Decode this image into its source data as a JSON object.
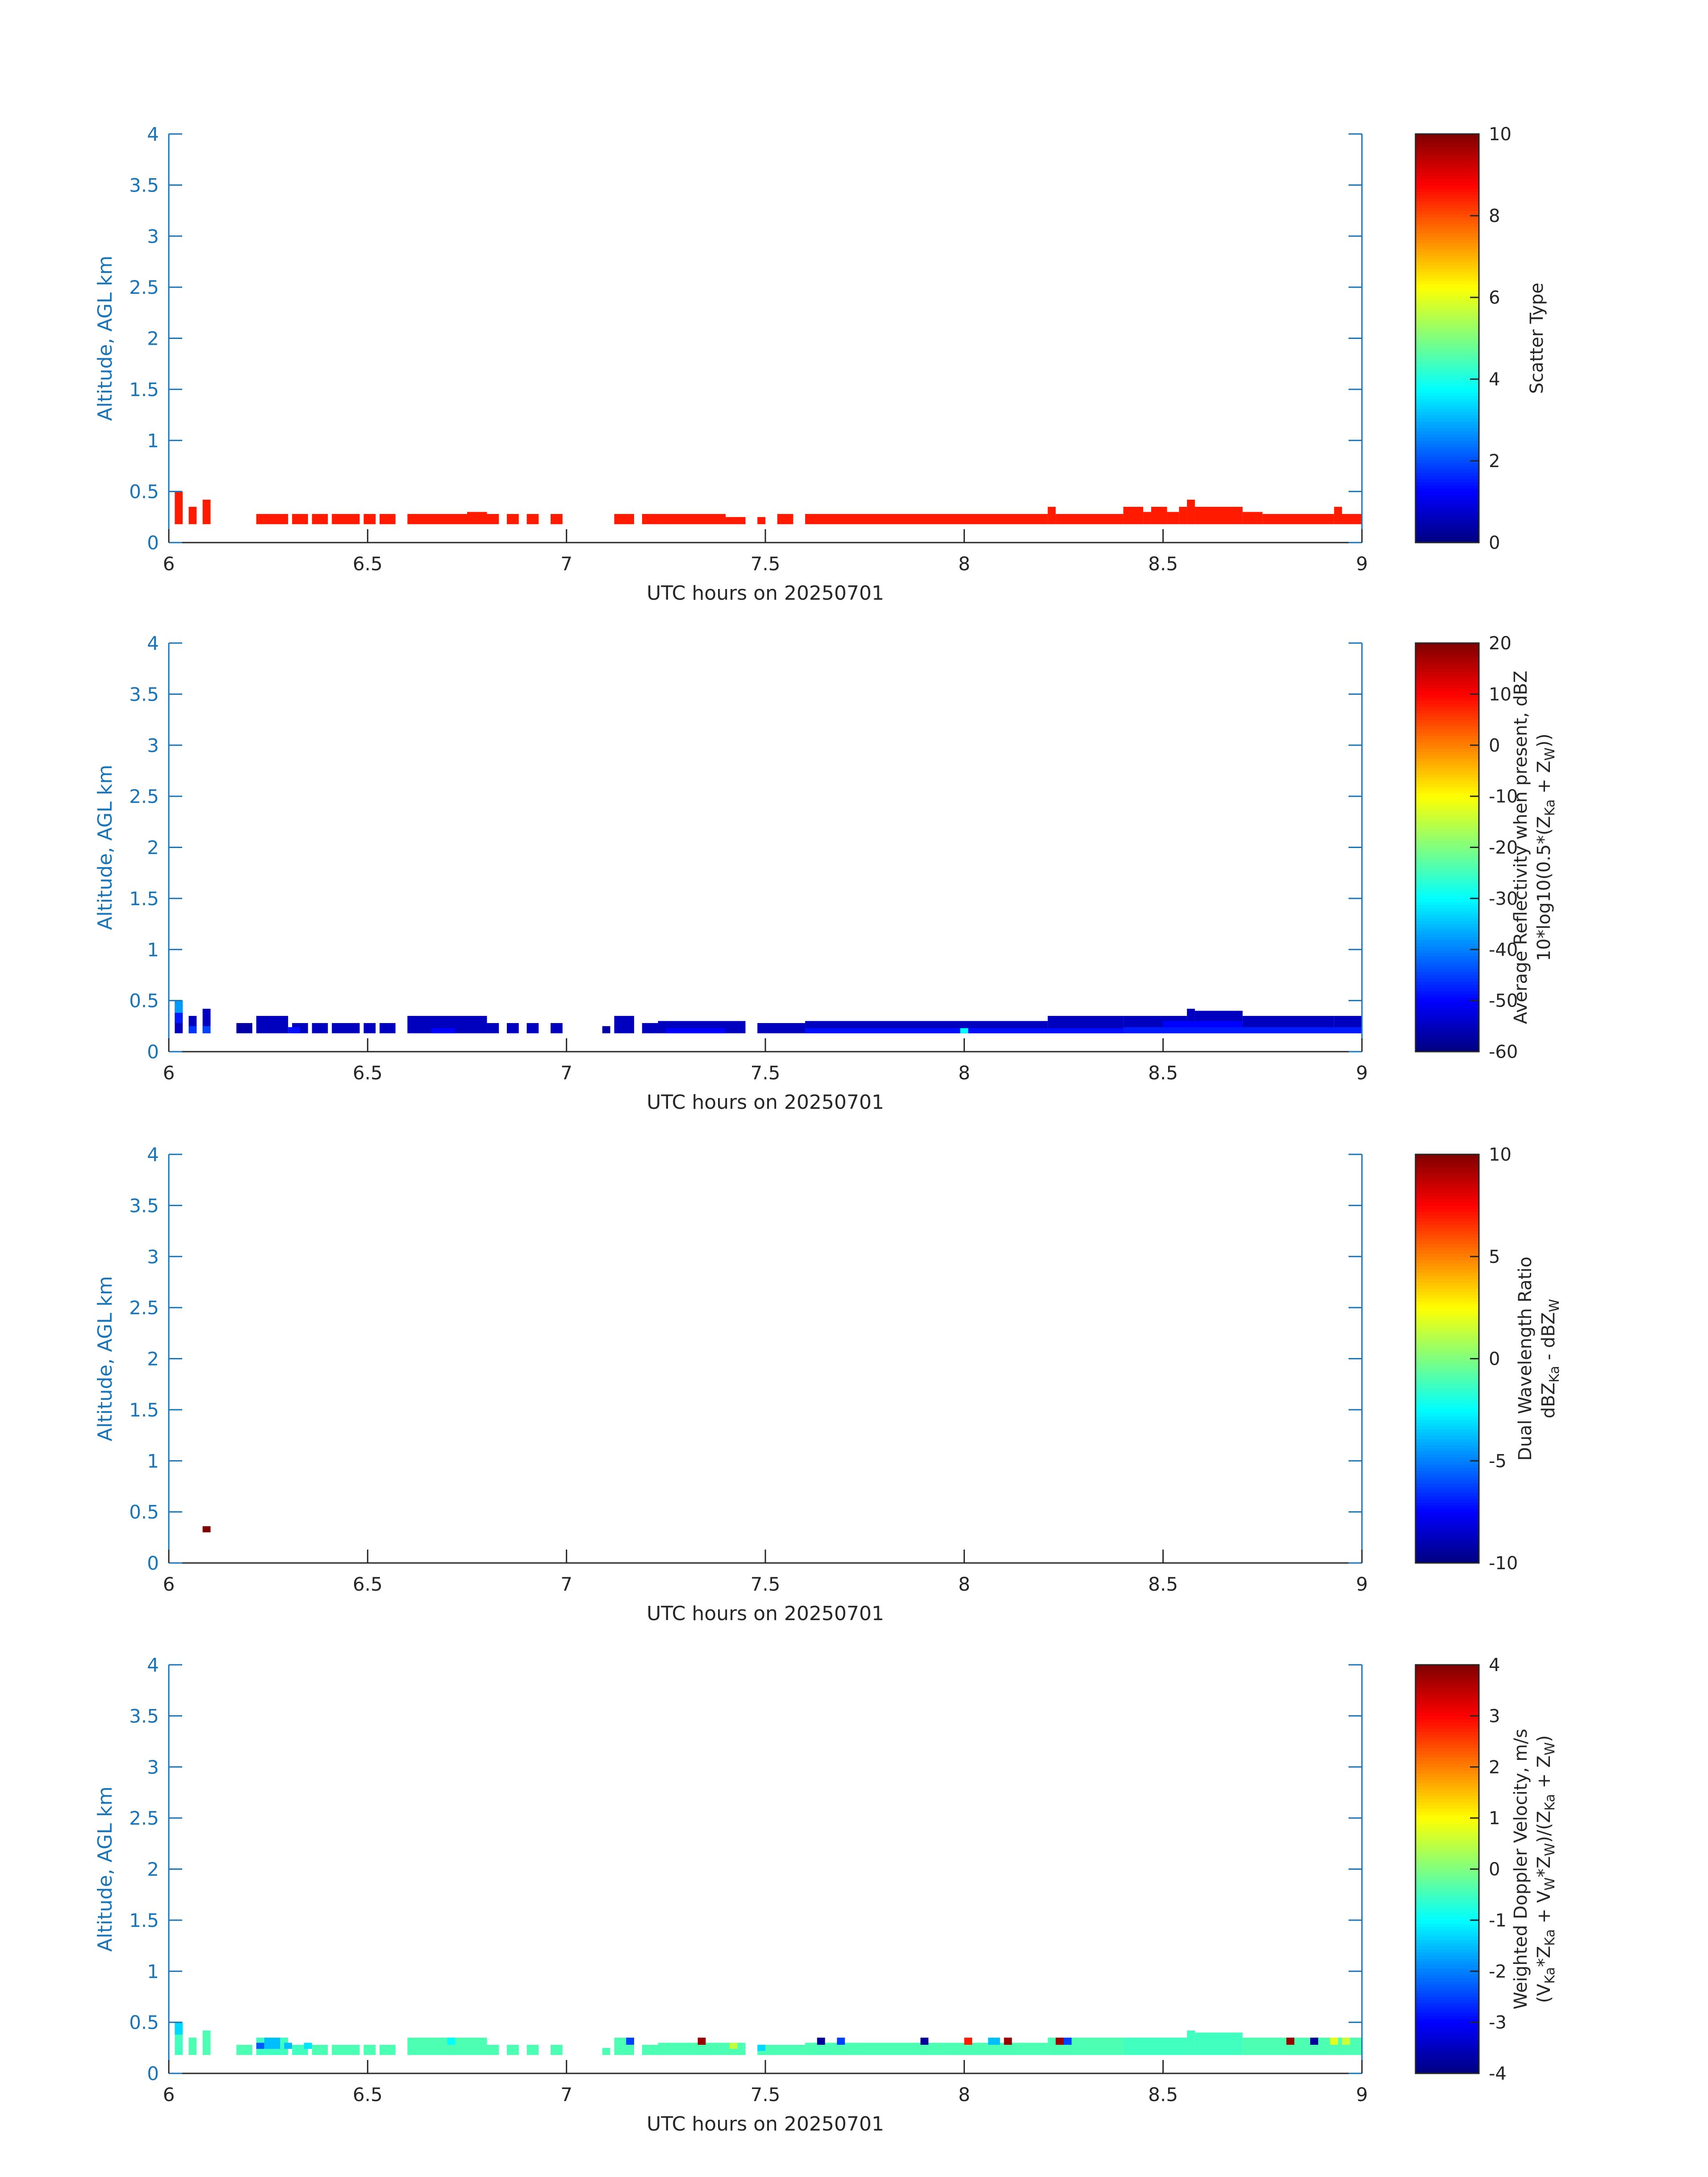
{
  "figure": {
    "xlabel": "UTC hours on 20250701",
    "ylabel": "Altitude, AGL km",
    "xlim": [
      6,
      9
    ],
    "ylim": [
      0,
      4
    ],
    "xticks": [
      "6",
      "6.5",
      "7",
      "7.5",
      "8",
      "8.5",
      "9"
    ],
    "yticks": [
      "0",
      "0.5",
      "1",
      "1.5",
      "2",
      "2.5",
      "3",
      "3.5",
      "4"
    ],
    "axis_color": "#1a75b8",
    "colormap": "jet"
  },
  "chart_data": [
    {
      "type": "heatmap",
      "variable": "scatter_type",
      "colorbar_label": [
        "Scatter Type"
      ],
      "clim": [
        0,
        10
      ],
      "cticks": [
        "0",
        "2",
        "4",
        "6",
        "8",
        "10"
      ],
      "dominant_value": 8.5,
      "segments": [
        {
          "x0": 6.015,
          "x1": 6.035,
          "top": 0.5,
          "v": 8.5
        },
        {
          "x0": 6.05,
          "x1": 6.07,
          "top": 0.35,
          "v": 8.5
        },
        {
          "x0": 6.085,
          "x1": 6.105,
          "top": 0.42,
          "v": 8.5
        },
        {
          "x0": 6.22,
          "x1": 6.3,
          "top": 0.28,
          "v": 8.5
        },
        {
          "x0": 6.31,
          "x1": 6.35,
          "top": 0.28,
          "v": 8.5
        },
        {
          "x0": 6.36,
          "x1": 6.4,
          "top": 0.28,
          "v": 8.5
        },
        {
          "x0": 6.41,
          "x1": 6.48,
          "top": 0.28,
          "v": 8.5
        },
        {
          "x0": 6.49,
          "x1": 6.52,
          "top": 0.28,
          "v": 8.5
        },
        {
          "x0": 6.53,
          "x1": 6.57,
          "top": 0.28,
          "v": 8.5
        },
        {
          "x0": 6.6,
          "x1": 6.75,
          "top": 0.28,
          "v": 8.5
        },
        {
          "x0": 6.75,
          "x1": 6.8,
          "top": 0.3,
          "v": 8.5
        },
        {
          "x0": 6.8,
          "x1": 6.83,
          "top": 0.28,
          "v": 8.5
        },
        {
          "x0": 6.85,
          "x1": 6.88,
          "top": 0.28,
          "v": 8.5
        },
        {
          "x0": 6.9,
          "x1": 6.93,
          "top": 0.28,
          "v": 8.5
        },
        {
          "x0": 6.96,
          "x1": 6.99,
          "top": 0.28,
          "v": 8.5
        },
        {
          "x0": 7.12,
          "x1": 7.17,
          "top": 0.28,
          "v": 8.5
        },
        {
          "x0": 7.19,
          "x1": 7.23,
          "top": 0.28,
          "v": 8.5
        },
        {
          "x0": 7.23,
          "x1": 7.4,
          "top": 0.28,
          "v": 8.5
        },
        {
          "x0": 7.4,
          "x1": 7.45,
          "top": 0.25,
          "v": 8.5
        },
        {
          "x0": 7.48,
          "x1": 7.5,
          "top": 0.25,
          "v": 8.5
        },
        {
          "x0": 7.53,
          "x1": 7.57,
          "top": 0.28,
          "v": 8.5
        },
        {
          "x0": 7.6,
          "x1": 8.21,
          "top": 0.28,
          "v": 8.5
        },
        {
          "x0": 8.21,
          "x1": 8.23,
          "top": 0.35,
          "v": 8.5
        },
        {
          "x0": 8.23,
          "x1": 8.4,
          "top": 0.28,
          "v": 8.5
        },
        {
          "x0": 8.4,
          "x1": 8.45,
          "top": 0.35,
          "v": 8.5
        },
        {
          "x0": 8.45,
          "x1": 8.47,
          "top": 0.3,
          "v": 8.5
        },
        {
          "x0": 8.47,
          "x1": 8.51,
          "top": 0.35,
          "v": 8.5
        },
        {
          "x0": 8.51,
          "x1": 8.54,
          "top": 0.3,
          "v": 8.5
        },
        {
          "x0": 8.54,
          "x1": 8.56,
          "top": 0.35,
          "v": 8.5
        },
        {
          "x0": 8.56,
          "x1": 8.58,
          "top": 0.42,
          "v": 8.5
        },
        {
          "x0": 8.58,
          "x1": 8.7,
          "top": 0.35,
          "v": 8.5
        },
        {
          "x0": 8.7,
          "x1": 8.75,
          "top": 0.3,
          "v": 8.5
        },
        {
          "x0": 8.75,
          "x1": 8.93,
          "top": 0.28,
          "v": 8.5
        },
        {
          "x0": 8.93,
          "x1": 8.95,
          "top": 0.35,
          "v": 8.5
        },
        {
          "x0": 8.95,
          "x1": 9.0,
          "top": 0.28,
          "v": 8.5
        }
      ]
    },
    {
      "type": "heatmap",
      "variable": "average_reflectivity",
      "colorbar_label": [
        "Average Reflectivity when present, dBZ",
        "10*log10(0.5*(Z",
        "Ka",
        " + Z",
        "W",
        "))"
      ],
      "clim": [
        -60,
        20
      ],
      "cticks": [
        "-60",
        "-50",
        "-40",
        "-30",
        "-20",
        "-10",
        "0",
        "10",
        "20"
      ],
      "dominant_value": -55,
      "segments": [
        {
          "x0": 6.015,
          "x1": 6.035,
          "top": 0.5,
          "v": -55
        },
        {
          "x0": 6.05,
          "x1": 6.07,
          "top": 0.35,
          "v": -55
        },
        {
          "x0": 6.085,
          "x1": 6.105,
          "top": 0.42,
          "v": -55
        },
        {
          "x0": 6.17,
          "x1": 6.21,
          "top": 0.28,
          "v": -57
        },
        {
          "x0": 6.22,
          "x1": 6.3,
          "top": 0.35,
          "v": -55
        },
        {
          "x0": 6.31,
          "x1": 6.35,
          "top": 0.28,
          "v": -55
        },
        {
          "x0": 6.36,
          "x1": 6.4,
          "top": 0.28,
          "v": -55
        },
        {
          "x0": 6.41,
          "x1": 6.48,
          "top": 0.28,
          "v": -55
        },
        {
          "x0": 6.49,
          "x1": 6.52,
          "top": 0.28,
          "v": -55
        },
        {
          "x0": 6.53,
          "x1": 6.57,
          "top": 0.28,
          "v": -55
        },
        {
          "x0": 6.6,
          "x1": 6.75,
          "top": 0.35,
          "v": -55
        },
        {
          "x0": 6.75,
          "x1": 6.8,
          "top": 0.35,
          "v": -55
        },
        {
          "x0": 6.8,
          "x1": 6.83,
          "top": 0.28,
          "v": -55
        },
        {
          "x0": 6.85,
          "x1": 6.88,
          "top": 0.28,
          "v": -55
        },
        {
          "x0": 6.9,
          "x1": 6.93,
          "top": 0.28,
          "v": -55
        },
        {
          "x0": 6.96,
          "x1": 6.99,
          "top": 0.28,
          "v": -55
        },
        {
          "x0": 7.09,
          "x1": 7.11,
          "top": 0.25,
          "v": -57
        },
        {
          "x0": 7.12,
          "x1": 7.17,
          "top": 0.35,
          "v": -55
        },
        {
          "x0": 7.19,
          "x1": 7.23,
          "top": 0.28,
          "v": -55
        },
        {
          "x0": 7.23,
          "x1": 7.45,
          "top": 0.3,
          "v": -55
        },
        {
          "x0": 7.48,
          "x1": 7.6,
          "top": 0.28,
          "v": -55
        },
        {
          "x0": 7.6,
          "x1": 8.21,
          "top": 0.3,
          "v": -55
        },
        {
          "x0": 8.21,
          "x1": 8.4,
          "top": 0.35,
          "v": -55
        },
        {
          "x0": 8.4,
          "x1": 8.56,
          "top": 0.35,
          "v": -55
        },
        {
          "x0": 8.56,
          "x1": 8.58,
          "top": 0.42,
          "v": -55
        },
        {
          "x0": 8.58,
          "x1": 8.7,
          "top": 0.4,
          "v": -55
        },
        {
          "x0": 8.7,
          "x1": 8.93,
          "top": 0.35,
          "v": -55
        },
        {
          "x0": 8.93,
          "x1": 9.0,
          "top": 0.35,
          "v": -55
        }
      ],
      "cells": [
        {
          "x0": 6.015,
          "x1": 6.035,
          "y0": 0.38,
          "y1": 0.5,
          "v": -38
        },
        {
          "x0": 6.015,
          "x1": 6.035,
          "y0": 0.28,
          "y1": 0.38,
          "v": -48
        },
        {
          "x0": 6.05,
          "x1": 6.07,
          "y0": 0.18,
          "y1": 0.25,
          "v": -46
        },
        {
          "x0": 6.085,
          "x1": 6.105,
          "y0": 0.18,
          "y1": 0.25,
          "v": -45
        },
        {
          "x0": 6.3,
          "x1": 6.33,
          "y0": 0.18,
          "y1": 0.24,
          "v": -49
        },
        {
          "x0": 6.66,
          "x1": 6.72,
          "y0": 0.18,
          "y1": 0.23,
          "v": -50
        },
        {
          "x0": 7.25,
          "x1": 7.4,
          "y0": 0.18,
          "y1": 0.23,
          "v": -50
        },
        {
          "x0": 7.6,
          "x1": 8.4,
          "y0": 0.18,
          "y1": 0.23,
          "v": -49
        },
        {
          "x0": 7.99,
          "x1": 8.01,
          "y0": 0.18,
          "y1": 0.23,
          "v": -30
        },
        {
          "x0": 8.4,
          "x1": 9.0,
          "y0": 0.18,
          "y1": 0.24,
          "v": -48
        },
        {
          "x0": 8.5,
          "x1": 8.7,
          "y0": 0.24,
          "y1": 0.3,
          "v": -50
        }
      ]
    },
    {
      "type": "heatmap",
      "variable": "dual_wavelength_ratio",
      "colorbar_label": [
        "Dual Wavelength Ratio",
        "dBZ",
        "Ka",
        " - dBZ",
        "W"
      ],
      "clim": [
        -10,
        10
      ],
      "cticks": [
        "-10",
        "-5",
        "0",
        "5",
        "10"
      ],
      "segments": [],
      "cells": [
        {
          "x0": 6.085,
          "x1": 6.105,
          "y0": 0.3,
          "y1": 0.36,
          "v": 10
        }
      ]
    },
    {
      "type": "heatmap",
      "variable": "weighted_doppler_velocity",
      "colorbar_label": [
        "Weighted Doppler Velocity, m/s",
        "(V",
        "Ka",
        "*Z",
        "Ka",
        " + V",
        "W",
        "*Z",
        "W",
        ")/(Z",
        "Ka",
        " + Z",
        "W",
        ")"
      ],
      "clim": [
        -4,
        4
      ],
      "cticks": [
        "-4",
        "-3",
        "-2",
        "-1",
        "0",
        "1",
        "2",
        "3",
        "4"
      ],
      "dominant_value": -0.4,
      "segments": [
        {
          "x0": 6.015,
          "x1": 6.035,
          "top": 0.5,
          "v": -0.5
        },
        {
          "x0": 6.05,
          "x1": 6.07,
          "top": 0.35,
          "v": -0.4
        },
        {
          "x0": 6.085,
          "x1": 6.105,
          "top": 0.42,
          "v": -0.4
        },
        {
          "x0": 6.17,
          "x1": 6.21,
          "top": 0.28,
          "v": -0.4
        },
        {
          "x0": 6.22,
          "x1": 6.3,
          "top": 0.35,
          "v": -0.5
        },
        {
          "x0": 6.31,
          "x1": 6.35,
          "top": 0.28,
          "v": -0.5
        },
        {
          "x0": 6.36,
          "x1": 6.4,
          "top": 0.28,
          "v": -0.4
        },
        {
          "x0": 6.41,
          "x1": 6.48,
          "top": 0.28,
          "v": -0.4
        },
        {
          "x0": 6.49,
          "x1": 6.52,
          "top": 0.28,
          "v": -0.4
        },
        {
          "x0": 6.53,
          "x1": 6.57,
          "top": 0.28,
          "v": -0.4
        },
        {
          "x0": 6.6,
          "x1": 6.75,
          "top": 0.35,
          "v": -0.4
        },
        {
          "x0": 6.75,
          "x1": 6.8,
          "top": 0.35,
          "v": -0.4
        },
        {
          "x0": 6.8,
          "x1": 6.83,
          "top": 0.28,
          "v": -0.4
        },
        {
          "x0": 6.85,
          "x1": 6.88,
          "top": 0.28,
          "v": -0.4
        },
        {
          "x0": 6.9,
          "x1": 6.93,
          "top": 0.28,
          "v": -0.4
        },
        {
          "x0": 6.96,
          "x1": 6.99,
          "top": 0.28,
          "v": -0.4
        },
        {
          "x0": 7.09,
          "x1": 7.11,
          "top": 0.25,
          "v": -0.4
        },
        {
          "x0": 7.12,
          "x1": 7.17,
          "top": 0.35,
          "v": -0.4
        },
        {
          "x0": 7.19,
          "x1": 7.23,
          "top": 0.28,
          "v": -0.4
        },
        {
          "x0": 7.23,
          "x1": 7.45,
          "top": 0.3,
          "v": -0.4
        },
        {
          "x0": 7.48,
          "x1": 7.6,
          "top": 0.28,
          "v": -0.4
        },
        {
          "x0": 7.6,
          "x1": 8.21,
          "top": 0.3,
          "v": -0.4
        },
        {
          "x0": 8.21,
          "x1": 8.4,
          "top": 0.35,
          "v": -0.4
        },
        {
          "x0": 8.4,
          "x1": 8.56,
          "top": 0.35,
          "v": -0.5
        },
        {
          "x0": 8.56,
          "x1": 8.58,
          "top": 0.42,
          "v": -0.5
        },
        {
          "x0": 8.58,
          "x1": 8.7,
          "top": 0.4,
          "v": -0.5
        },
        {
          "x0": 8.7,
          "x1": 8.93,
          "top": 0.35,
          "v": -0.4
        },
        {
          "x0": 8.93,
          "x1": 9.0,
          "top": 0.35,
          "v": -0.4
        }
      ],
      "cells": [
        {
          "x0": 6.015,
          "x1": 6.035,
          "y0": 0.38,
          "y1": 0.5,
          "v": -1.3
        },
        {
          "x0": 6.22,
          "x1": 6.24,
          "y0": 0.24,
          "y1": 0.3,
          "v": -2.3
        },
        {
          "x0": 6.24,
          "x1": 6.28,
          "y0": 0.24,
          "y1": 0.35,
          "v": -1.5
        },
        {
          "x0": 6.29,
          "x1": 6.31,
          "y0": 0.24,
          "y1": 0.3,
          "v": -1.5
        },
        {
          "x0": 6.34,
          "x1": 6.36,
          "y0": 0.24,
          "y1": 0.3,
          "v": -1.2
        },
        {
          "x0": 6.7,
          "x1": 6.72,
          "y0": 0.28,
          "y1": 0.35,
          "v": -1.0
        },
        {
          "x0": 7.15,
          "x1": 7.17,
          "y0": 0.28,
          "y1": 0.35,
          "v": -2.5
        },
        {
          "x0": 7.33,
          "x1": 7.35,
          "y0": 0.28,
          "y1": 0.35,
          "v": 3.8
        },
        {
          "x0": 7.41,
          "x1": 7.43,
          "y0": 0.24,
          "y1": 0.3,
          "v": 0.5
        },
        {
          "x0": 7.48,
          "x1": 7.5,
          "y0": 0.22,
          "y1": 0.28,
          "v": -1.3
        },
        {
          "x0": 7.63,
          "x1": 7.65,
          "y0": 0.28,
          "y1": 0.35,
          "v": -3.8
        },
        {
          "x0": 7.68,
          "x1": 7.7,
          "y0": 0.28,
          "y1": 0.35,
          "v": -2.5
        },
        {
          "x0": 7.89,
          "x1": 7.91,
          "y0": 0.28,
          "y1": 0.35,
          "v": -3.8
        },
        {
          "x0": 8.0,
          "x1": 8.02,
          "y0": 0.28,
          "y1": 0.35,
          "v": 2.8
        },
        {
          "x0": 8.06,
          "x1": 8.09,
          "y0": 0.28,
          "y1": 0.35,
          "v": -1.5
        },
        {
          "x0": 8.1,
          "x1": 8.12,
          "y0": 0.28,
          "y1": 0.35,
          "v": 3.8
        },
        {
          "x0": 8.23,
          "x1": 8.25,
          "y0": 0.28,
          "y1": 0.35,
          "v": 3.8
        },
        {
          "x0": 8.25,
          "x1": 8.27,
          "y0": 0.28,
          "y1": 0.35,
          "v": -2.5
        },
        {
          "x0": 8.81,
          "x1": 8.83,
          "y0": 0.28,
          "y1": 0.35,
          "v": 3.8
        },
        {
          "x0": 8.87,
          "x1": 8.89,
          "y0": 0.28,
          "y1": 0.35,
          "v": -3.8
        },
        {
          "x0": 8.92,
          "x1": 8.94,
          "y0": 0.28,
          "y1": 0.35,
          "v": 0.8
        },
        {
          "x0": 8.95,
          "x1": 8.97,
          "y0": 0.28,
          "y1": 0.35,
          "v": 0.6
        }
      ]
    }
  ]
}
